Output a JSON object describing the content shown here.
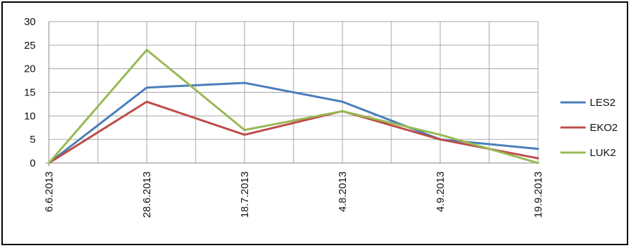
{
  "chart_data": {
    "type": "line",
    "categories": [
      "6.6.2013",
      "28.6.2013",
      "18.7.2013",
      "4.8.2013",
      "4.9.2013",
      "19.9.2013"
    ],
    "ylim": [
      0,
      30
    ],
    "yticks": [
      0,
      5,
      10,
      15,
      20,
      25,
      30
    ],
    "grid": true,
    "legend_position": "right",
    "series": [
      {
        "name": "LES2",
        "color": "#4a7ebb",
        "values": [
          0,
          16,
          17,
          13,
          5,
          3
        ]
      },
      {
        "name": "EKO2",
        "color": "#be4b48",
        "values": [
          0,
          13,
          6,
          11,
          5,
          1
        ]
      },
      {
        "name": "LUK2",
        "color": "#98b954",
        "values": [
          0,
          24,
          7,
          11,
          6,
          0
        ]
      }
    ]
  }
}
